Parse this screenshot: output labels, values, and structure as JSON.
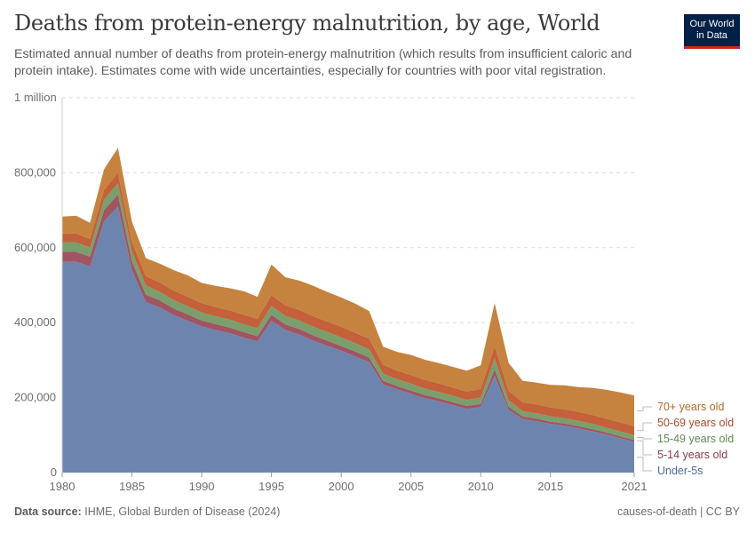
{
  "header": {
    "title": "Deaths from protein-energy malnutrition, by age, World",
    "subtitle": "Estimated annual number of deaths from protein-energy malnutrition (which results from insufficient caloric and protein intake). Estimates come with wide uncertainties, especially for countries with poor vital registration.",
    "logo_line1": "Our World",
    "logo_line2": "in Data"
  },
  "footer": {
    "source_label": "Data source:",
    "source_text": "IHME, Global Burden of Disease (2024)",
    "right_text": "causes-of-death | CC BY"
  },
  "chart_data": {
    "type": "area",
    "stacked": true,
    "title": "Deaths from protein-energy malnutrition, by age, World",
    "xlabel": "",
    "ylabel": "",
    "x": [
      1980,
      1981,
      1982,
      1983,
      1984,
      1985,
      1986,
      1987,
      1988,
      1989,
      1990,
      1991,
      1992,
      1993,
      1994,
      1995,
      1996,
      1997,
      1998,
      1999,
      2000,
      2001,
      2002,
      2003,
      2004,
      2005,
      2006,
      2007,
      2008,
      2009,
      2010,
      2011,
      2012,
      2013,
      2014,
      2015,
      2016,
      2017,
      2018,
      2019,
      2020,
      2021
    ],
    "xlim": [
      1980,
      2021
    ],
    "ylim": [
      0,
      1000000
    ],
    "x_ticks": [
      "1980",
      "1985",
      "1990",
      "1995",
      "2000",
      "2005",
      "2010",
      "2015",
      "2021"
    ],
    "x_tick_values": [
      1980,
      1985,
      1990,
      1995,
      2000,
      2005,
      2010,
      2015,
      2021
    ],
    "y_ticks": [
      "0",
      "200,000",
      "400,000",
      "600,000",
      "800,000",
      "1 million"
    ],
    "y_tick_values": [
      0,
      200000,
      400000,
      600000,
      800000,
      1000000
    ],
    "grid": "horizontal-dashed",
    "legend_position": "right",
    "series": [
      {
        "name": "Under-5s",
        "color": "#6d85ae",
        "values": [
          562000,
          562000,
          550000,
          670000,
          710000,
          540000,
          455000,
          440000,
          420000,
          405000,
          390000,
          380000,
          372000,
          360000,
          350000,
          405000,
          380000,
          368000,
          352000,
          338000,
          325000,
          310000,
          295000,
          235000,
          222000,
          210000,
          198000,
          190000,
          180000,
          170000,
          175000,
          258000,
          168000,
          143000,
          137000,
          130000,
          125000,
          118000,
          110000,
          102000,
          92000,
          82000
        ]
      },
      {
        "name": "5-14 years old",
        "color": "#a05563",
        "values": [
          27000,
          27000,
          26000,
          30000,
          32000,
          24000,
          20000,
          19000,
          18000,
          17000,
          16000,
          16000,
          15000,
          15000,
          14000,
          16000,
          15000,
          15000,
          14000,
          14000,
          13000,
          13000,
          12000,
          10000,
          9000,
          9000,
          9000,
          8000,
          8000,
          8000,
          8000,
          17000,
          8000,
          7000,
          7000,
          6000,
          6000,
          6000,
          6000,
          5000,
          5000,
          5000
        ]
      },
      {
        "name": "15-49 years old",
        "color": "#7a9e6c",
        "values": [
          25000,
          25000,
          24000,
          28000,
          30000,
          26000,
          24000,
          23000,
          22000,
          22000,
          21000,
          21000,
          21000,
          21000,
          21000,
          24000,
          23000,
          23000,
          23000,
          23000,
          23000,
          22000,
          22000,
          19000,
          18000,
          18000,
          17000,
          17000,
          17000,
          16000,
          17000,
          30000,
          17000,
          14000,
          14000,
          14000,
          14000,
          14000,
          14000,
          13000,
          13000,
          13000
        ]
      },
      {
        "name": "50-69 years old",
        "color": "#c4603a",
        "values": [
          24000,
          24000,
          23000,
          26000,
          28000,
          25000,
          25000,
          25000,
          25000,
          25000,
          25000,
          25000,
          25000,
          25000,
          25000,
          28000,
          28000,
          28000,
          28000,
          28000,
          28000,
          28000,
          28000,
          24000,
          23000,
          23000,
          23000,
          23000,
          22000,
          22000,
          23000,
          32000,
          25000,
          24000,
          24000,
          24000,
          24000,
          24000,
          24000,
          24000,
          24000,
          24000
        ]
      },
      {
        "name": "70+ years old",
        "color": "#c5833f",
        "values": [
          45000,
          47000,
          43000,
          55000,
          66000,
          55000,
          48000,
          50000,
          55000,
          57000,
          54000,
          56000,
          59000,
          63000,
          59000,
          82000,
          75000,
          78000,
          81000,
          79000,
          78000,
          78000,
          74000,
          48000,
          50000,
          54000,
          54000,
          54000,
          55000,
          56000,
          63000,
          115000,
          75000,
          57000,
          58000,
          60000,
          64000,
          66000,
          72000,
          77000,
          80000,
          82000
        ]
      }
    ]
  }
}
